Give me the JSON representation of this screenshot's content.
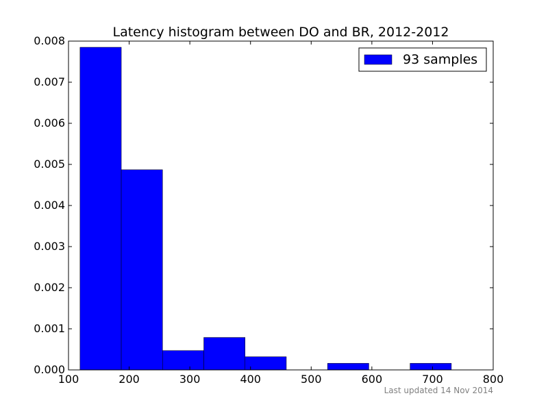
{
  "chart_data": {
    "type": "bar",
    "title": "Latency histogram between DO and BR, 2012-2012",
    "xlabel": "",
    "ylabel": "",
    "xlim": [
      100,
      800
    ],
    "ylim": [
      0,
      0.008
    ],
    "x_ticks": [
      100,
      200,
      300,
      400,
      500,
      600,
      700,
      800
    ],
    "y_ticks": [
      "0.000",
      "0.001",
      "0.002",
      "0.003",
      "0.004",
      "0.005",
      "0.006",
      "0.007",
      "0.008"
    ],
    "bins": [
      {
        "x0": 119,
        "x1": 187,
        "value": 0.00785
      },
      {
        "x0": 187,
        "x1": 255,
        "value": 0.00487
      },
      {
        "x0": 255,
        "x1": 323,
        "value": 0.00047
      },
      {
        "x0": 323,
        "x1": 391,
        "value": 0.00079
      },
      {
        "x0": 391,
        "x1": 459,
        "value": 0.00032
      },
      {
        "x0": 459,
        "x1": 527,
        "value": 0
      },
      {
        "x0": 527,
        "x1": 595,
        "value": 0.00016
      },
      {
        "x0": 595,
        "x1": 663,
        "value": 0
      },
      {
        "x0": 663,
        "x1": 731,
        "value": 0.00016
      }
    ],
    "series": [
      {
        "name": "93 samples",
        "color": "#0000ff"
      }
    ],
    "legend_position": "top-right",
    "grid": false,
    "footnote": "Last updated 14 Nov 2014"
  }
}
